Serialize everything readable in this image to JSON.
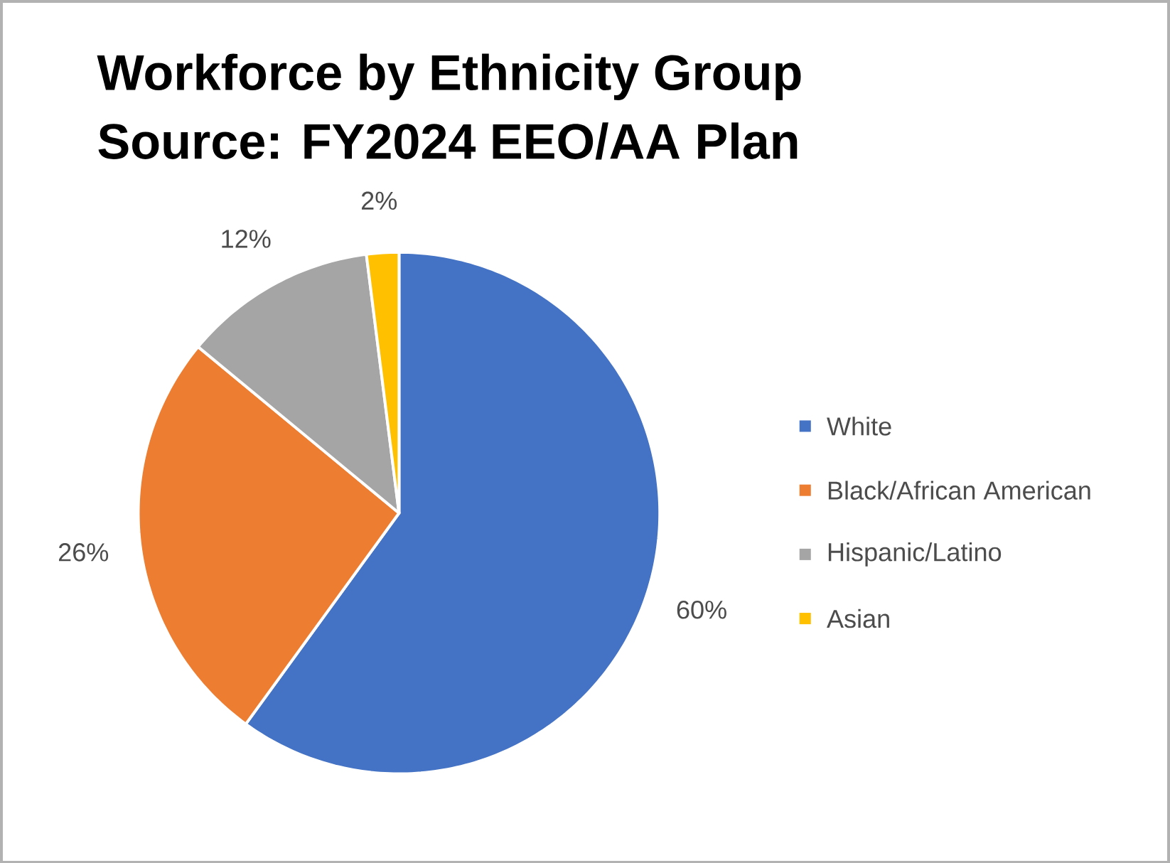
{
  "chart_data": {
    "type": "pie",
    "title": "Workforce by Ethnicity Group",
    "subtitle": "Source: FY2024 EEO/AA Plan",
    "categories": [
      "White",
      "Black/African American",
      "Hispanic/Latino",
      "Asian"
    ],
    "values": [
      60,
      26,
      12,
      2
    ],
    "colors": [
      "#4472c4",
      "#ed7d31",
      "#a5a5a5",
      "#ffc000"
    ],
    "value_labels": [
      "60%",
      "26%",
      "12%",
      "2%"
    ],
    "legend": "right"
  }
}
